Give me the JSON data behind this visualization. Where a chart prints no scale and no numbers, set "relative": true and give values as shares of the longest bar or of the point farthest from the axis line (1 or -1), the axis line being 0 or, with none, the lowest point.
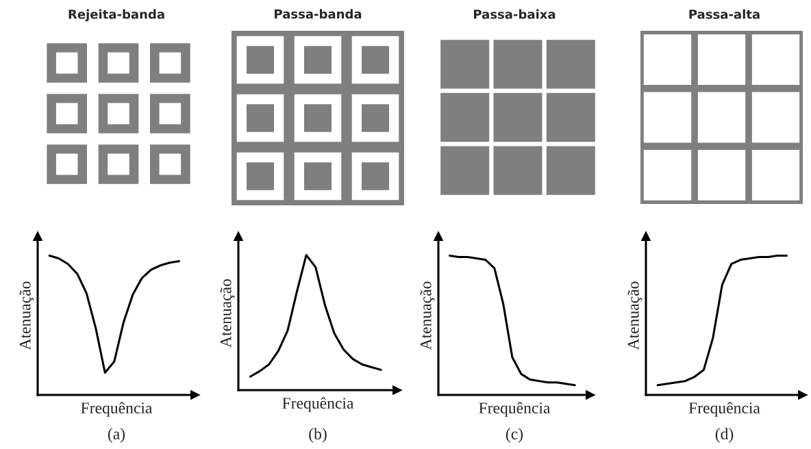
{
  "chart_data": [
    {
      "type": "line",
      "title": "Rejeita-banda",
      "xlabel": "Frequência",
      "ylabel": "Atenuação",
      "annotations": [
        "(a)"
      ],
      "relative": true,
      "color": "#000000",
      "categories": [
        null,
        null,
        null,
        null,
        null,
        null,
        null,
        null,
        null,
        null,
        null,
        null,
        null,
        null,
        null
      ],
      "values": [
        1,
        0.98,
        0.94,
        0.87,
        0.73,
        0.48,
        0.16,
        0.24,
        0.52,
        0.72,
        0.84,
        0.9,
        0.93,
        0.95,
        0.96
      ]
    },
    {
      "type": "line",
      "title": "Passa-banda",
      "xlabel": "Frequência",
      "ylabel": "Atenuação",
      "annotations": [
        "(b)"
      ],
      "relative": true,
      "color": "#000000",
      "categories": [
        null,
        null,
        null,
        null,
        null,
        null,
        null,
        null,
        null,
        null,
        null,
        null,
        null,
        null,
        null
      ],
      "values": [
        0.1,
        0.14,
        0.19,
        0.29,
        0.44,
        0.73,
        1,
        0.91,
        0.63,
        0.42,
        0.3,
        0.23,
        0.19,
        0.17,
        0.15
      ]
    },
    {
      "type": "line",
      "title": "Passa-baixa",
      "xlabel": "Frequência",
      "ylabel": "Atenuação",
      "annotations": [
        "(c)"
      ],
      "relative": true,
      "color": "#000000",
      "categories": [
        null,
        null,
        null,
        null,
        null,
        null,
        null,
        null,
        null,
        null,
        null,
        null,
        null,
        null,
        null
      ],
      "values": [
        1,
        0.99,
        0.99,
        0.98,
        0.97,
        0.91,
        0.65,
        0.27,
        0.15,
        0.11,
        0.1,
        0.09,
        0.09,
        0.08,
        0.07
      ]
    },
    {
      "type": "line",
      "title": "Passa-alta",
      "xlabel": "Frequência",
      "ylabel": "Atenuação",
      "annotations": [
        "(d)"
      ],
      "relative": true,
      "color": "#000000",
      "categories": [
        null,
        null,
        null,
        null,
        null,
        null,
        null,
        null,
        null,
        null,
        null,
        null,
        null,
        null,
        null
      ],
      "values": [
        0.07,
        0.08,
        0.09,
        0.1,
        0.13,
        0.18,
        0.41,
        0.79,
        0.94,
        0.97,
        0.98,
        0.99,
        0.99,
        1,
        1
      ]
    }
  ]
}
